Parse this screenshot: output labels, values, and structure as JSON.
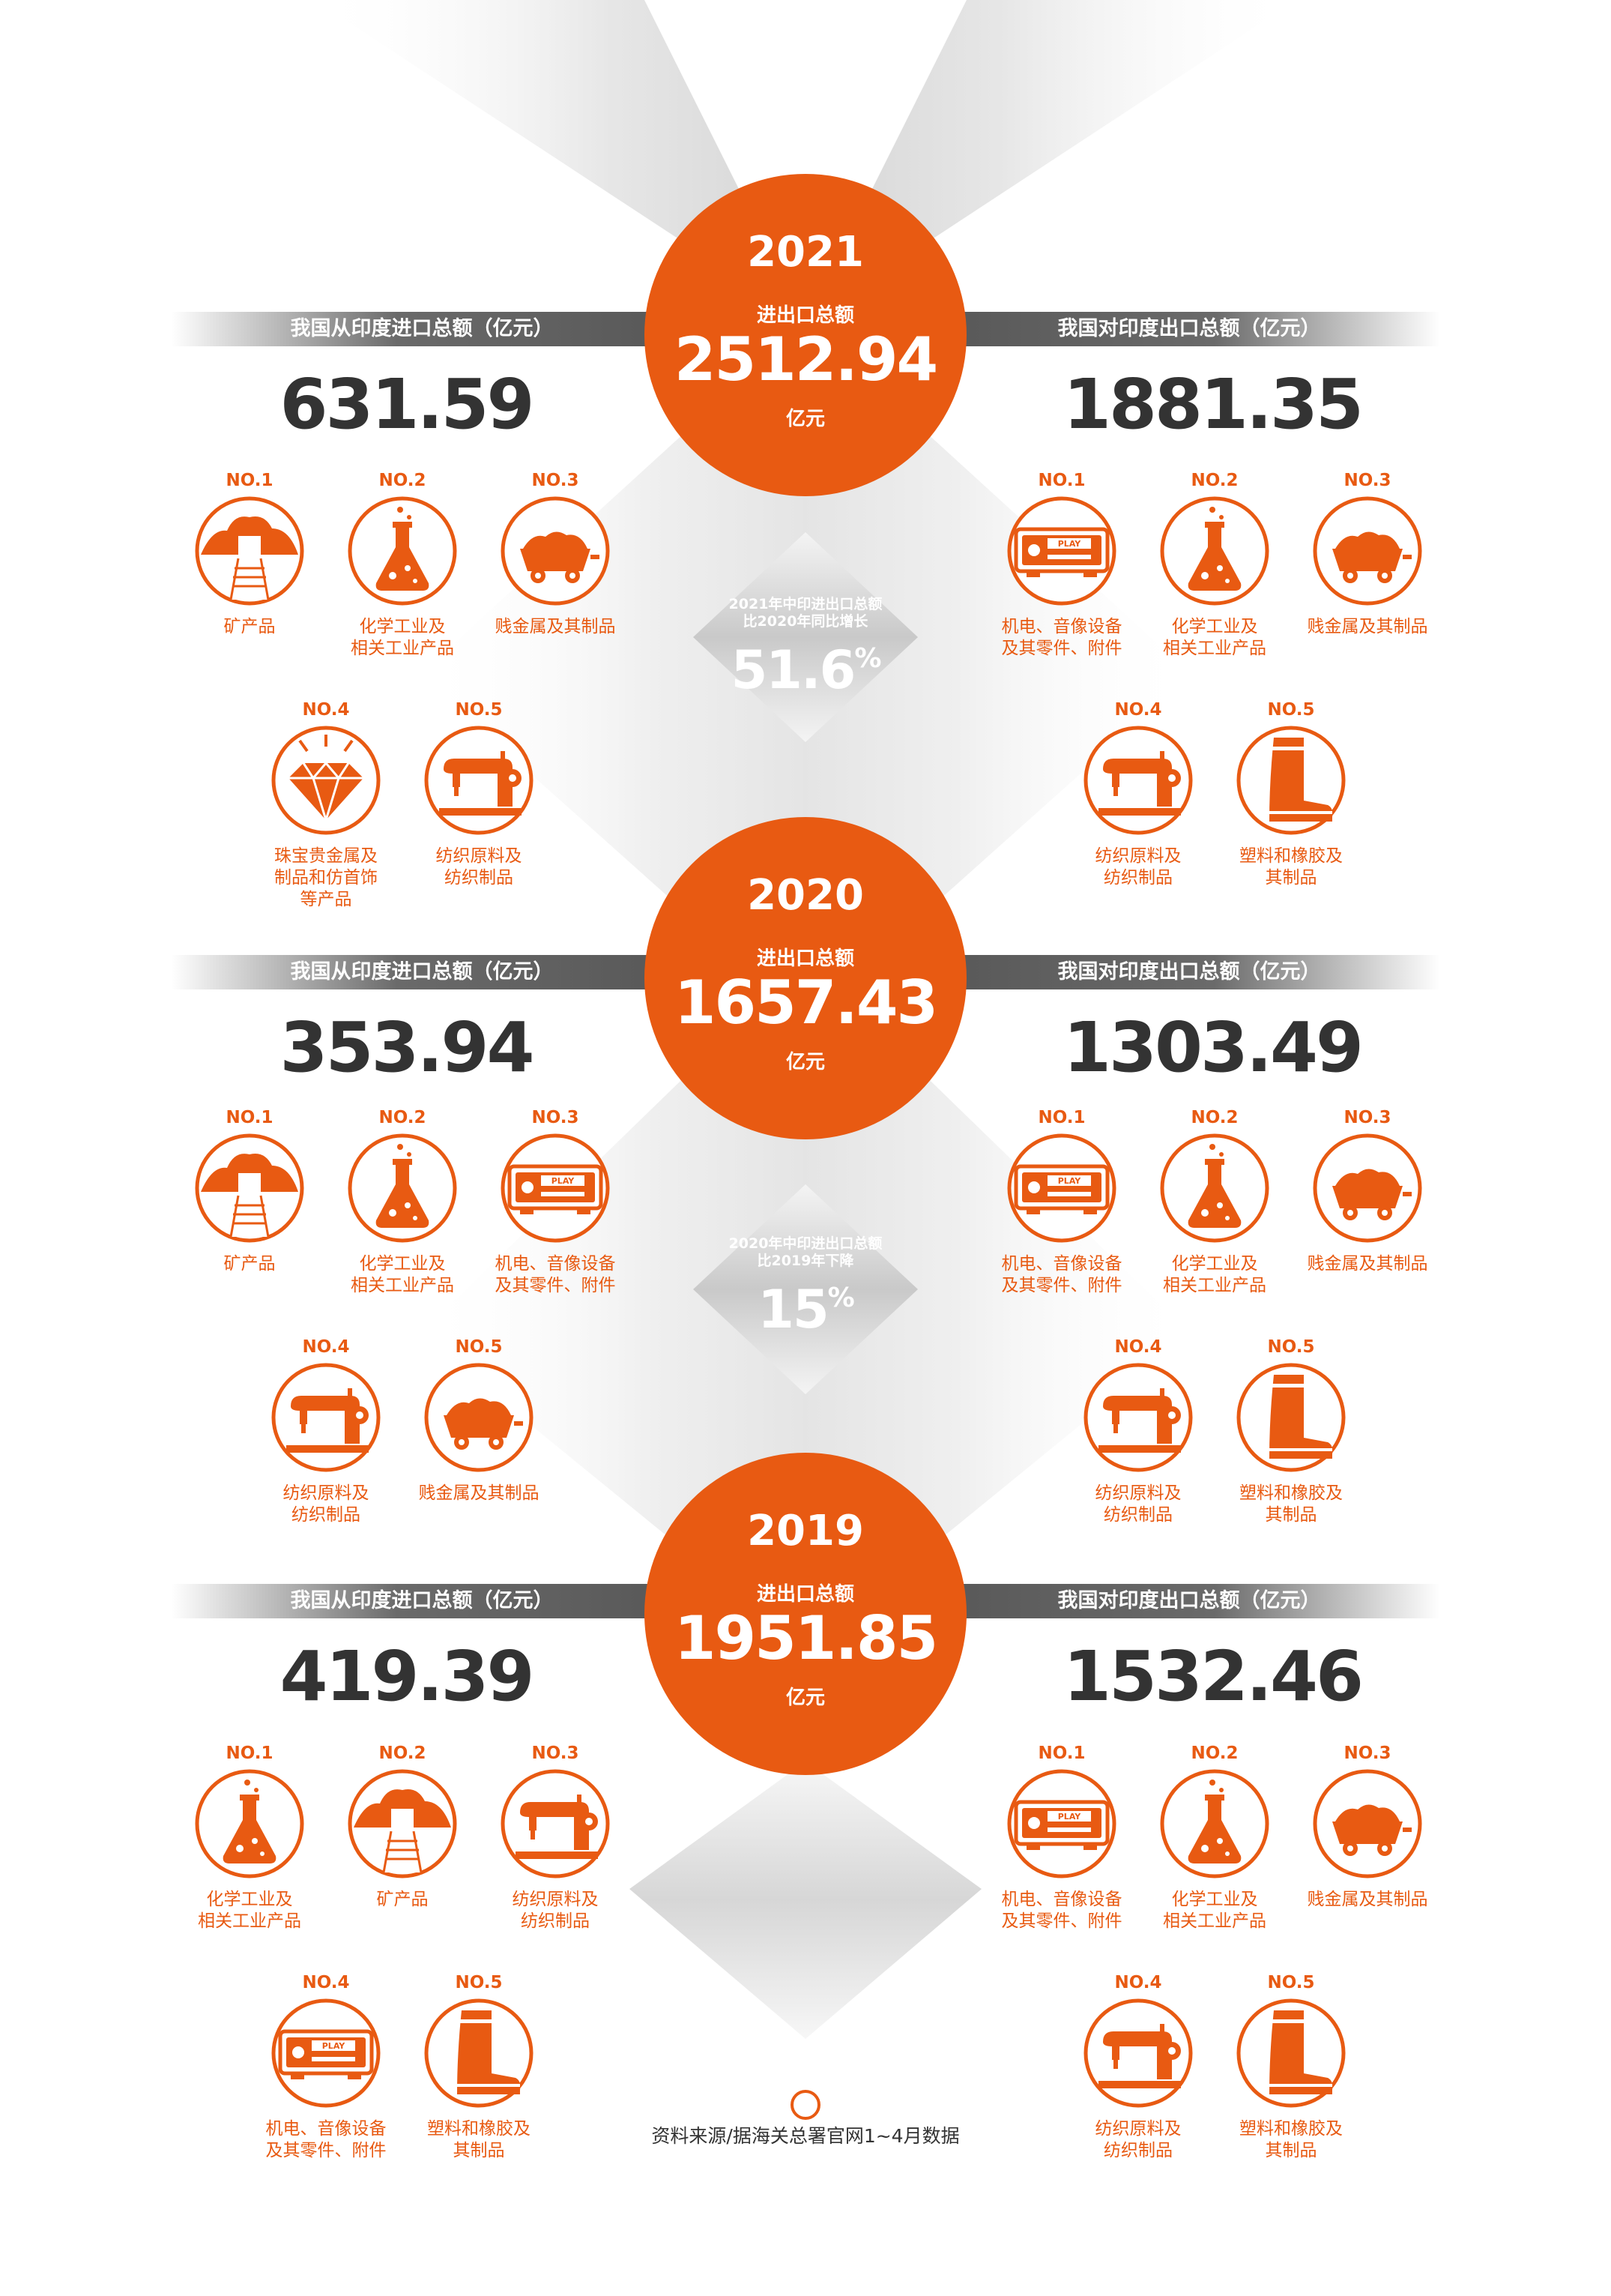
{
  "colors": {
    "accent": "#e85a12",
    "dark": "#333333",
    "ribbon": "#5a5a5a"
  },
  "sections": [
    {
      "year": "2021",
      "total_label": "进出口总额",
      "total": "2512.94",
      "unit": "亿元",
      "import_label": "我国从印度进口总额（亿元）",
      "import_value": "631.59",
      "export_label": "我国对印度出口总额（亿元）",
      "export_value": "1881.35",
      "imports": [
        {
          "rank": "NO.1",
          "icon": "mine-icon",
          "name": "矿产品"
        },
        {
          "rank": "NO.2",
          "icon": "flask-icon",
          "name": "化学工业及\n相关工业产品"
        },
        {
          "rank": "NO.3",
          "icon": "ore-cart-icon",
          "name": "贱金属及其制品"
        },
        {
          "rank": "NO.4",
          "icon": "diamond-icon",
          "name": "珠宝贵金属及\n制品和仿首饰\n等产品"
        },
        {
          "rank": "NO.5",
          "icon": "sewing-machine-icon",
          "name": "纺织原料及\n纺织制品"
        }
      ],
      "exports": [
        {
          "rank": "NO.1",
          "icon": "audio-player-icon",
          "name": "机电、音像设备\n及其零件、附件"
        },
        {
          "rank": "NO.2",
          "icon": "flask-icon",
          "name": "化学工业及\n相关工业产品"
        },
        {
          "rank": "NO.3",
          "icon": "ore-cart-icon",
          "name": "贱金属及其制品"
        },
        {
          "rank": "NO.4",
          "icon": "sewing-machine-icon",
          "name": "纺织原料及\n纺织制品"
        },
        {
          "rank": "NO.5",
          "icon": "rubber-boot-icon",
          "name": "塑料和橡胶及\n其制品"
        }
      ]
    },
    {
      "year": "2020",
      "total_label": "进出口总额",
      "total": "1657.43",
      "unit": "亿元",
      "import_label": "我国从印度进口总额（亿元）",
      "import_value": "353.94",
      "export_label": "我国对印度出口总额（亿元）",
      "export_value": "1303.49",
      "imports": [
        {
          "rank": "NO.1",
          "icon": "mine-icon",
          "name": "矿产品"
        },
        {
          "rank": "NO.2",
          "icon": "flask-icon",
          "name": "化学工业及\n相关工业产品"
        },
        {
          "rank": "NO.3",
          "icon": "audio-player-icon",
          "name": "机电、音像设备\n及其零件、附件"
        },
        {
          "rank": "NO.4",
          "icon": "sewing-machine-icon",
          "name": "纺织原料及\n纺织制品"
        },
        {
          "rank": "NO.5",
          "icon": "ore-cart-icon",
          "name": "贱金属及其制品"
        }
      ],
      "exports": [
        {
          "rank": "NO.1",
          "icon": "audio-player-icon",
          "name": "机电、音像设备\n及其零件、附件"
        },
        {
          "rank": "NO.2",
          "icon": "flask-icon",
          "name": "化学工业及\n相关工业产品"
        },
        {
          "rank": "NO.3",
          "icon": "ore-cart-icon",
          "name": "贱金属及其制品"
        },
        {
          "rank": "NO.4",
          "icon": "sewing-machine-icon",
          "name": "纺织原料及\n纺织制品"
        },
        {
          "rank": "NO.5",
          "icon": "rubber-boot-icon",
          "name": "塑料和橡胶及\n其制品"
        }
      ]
    },
    {
      "year": "2019",
      "total_label": "进出口总额",
      "total": "1951.85",
      "unit": "亿元",
      "import_label": "我国从印度进口总额（亿元）",
      "import_value": "419.39",
      "export_label": "我国对印度出口总额（亿元）",
      "export_value": "1532.46",
      "imports": [
        {
          "rank": "NO.1",
          "icon": "flask-icon",
          "name": "化学工业及\n相关工业产品"
        },
        {
          "rank": "NO.2",
          "icon": "mine-icon",
          "name": "矿产品"
        },
        {
          "rank": "NO.3",
          "icon": "sewing-machine-icon",
          "name": "纺织原料及\n纺织制品"
        },
        {
          "rank": "NO.4",
          "icon": "audio-player-icon",
          "name": "机电、音像设备\n及其零件、附件"
        },
        {
          "rank": "NO.5",
          "icon": "rubber-boot-icon",
          "name": "塑料和橡胶及\n其制品"
        }
      ],
      "exports": [
        {
          "rank": "NO.1",
          "icon": "audio-player-icon",
          "name": "机电、音像设备\n及其零件、附件"
        },
        {
          "rank": "NO.2",
          "icon": "flask-icon",
          "name": "化学工业及\n相关工业产品"
        },
        {
          "rank": "NO.3",
          "icon": "ore-cart-icon",
          "name": "贱金属及其制品"
        },
        {
          "rank": "NO.4",
          "icon": "sewing-machine-icon",
          "name": "纺织原料及\n纺织制品"
        },
        {
          "rank": "NO.5",
          "icon": "rubber-boot-icon",
          "name": "塑料和橡胶及\n其制品"
        }
      ]
    }
  ],
  "changes": [
    {
      "text": "2021年中印进出口总额\n比2020年同比增长",
      "value": "51.6",
      "suffix": "%"
    },
    {
      "text": "2020年中印进出口总额\n比2019年下降",
      "value": "15",
      "suffix": "%"
    }
  ],
  "footer": {
    "source": "资料来源/据海关总署官网1~4月数据"
  }
}
